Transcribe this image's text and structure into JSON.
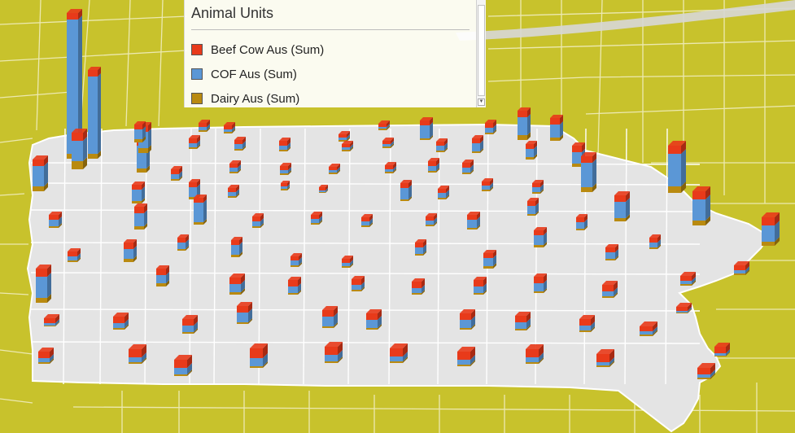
{
  "legend": {
    "title": "Animal Units",
    "items": [
      {
        "label": "Beef Cow Aus (Sum)",
        "color": "#e83a1a"
      },
      {
        "label": "COF Aus (Sum)",
        "color": "#5b97d6"
      },
      {
        "label": "Dairy Aus (Sum)",
        "color": "#b98a10"
      }
    ]
  },
  "map": {
    "surround_color": "#c8c22c",
    "state_fill": "#e4e4e4",
    "boundary_color": "#ffffff"
  },
  "chart_data": {
    "type": "bar",
    "title": "",
    "series": [
      {
        "name": "Beef Cow Aus (Sum)"
      },
      {
        "name": "COF Aus (Sum)"
      },
      {
        "name": "Dairy Aus (Sum)"
      }
    ]
  }
}
